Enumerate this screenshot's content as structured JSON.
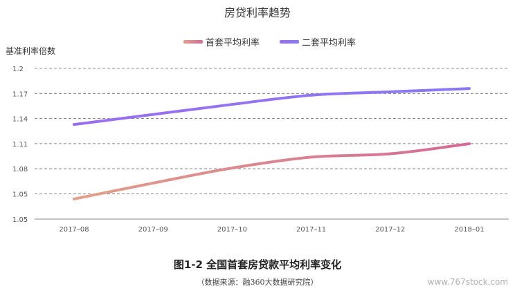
{
  "chart_data": {
    "type": "line",
    "title": "房贷利率趋势",
    "ylabel": "基准利率倍数",
    "xlabel": "",
    "categories": [
      "2017–08",
      "2017–09",
      "2017–10",
      "2017–11",
      "2017–12",
      "2018–01"
    ],
    "yticks": [
      "1.2",
      "1.17",
      "1.14",
      "1.11",
      "1.08",
      "1.05",
      "1.05"
    ],
    "ylim": [
      1.02,
      1.2
    ],
    "grid": true,
    "legend_position": "top-center",
    "series": [
      {
        "name": "首套平均利率",
        "values": [
          1.044,
          1.063,
          1.081,
          1.094,
          1.098,
          1.11
        ],
        "color_start": "#e2a08a",
        "color_end": "#d46a98"
      },
      {
        "name": "二套平均利率",
        "values": [
          1.133,
          1.145,
          1.157,
          1.168,
          1.172,
          1.176
        ],
        "color_start": "#9b6ef0",
        "color_end": "#8a79f5"
      }
    ]
  },
  "caption": "图1-2 全国首套房贷款平均利率变化",
  "source": "（数据来源：融360大数据研究院）",
  "watermark": "www.767stock.com"
}
